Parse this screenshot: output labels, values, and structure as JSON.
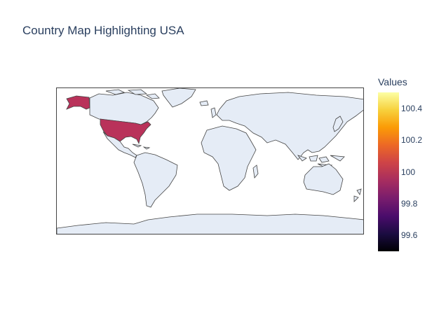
{
  "map": {
    "title": "Country Map Highlighting USA",
    "highlighted_country": "USA",
    "highlight_value": 100,
    "land_color": "#e5ecf6",
    "border_color": "#444444",
    "highlight_color": "#b9325a"
  },
  "colorbar": {
    "title": "Values",
    "colorscale": "inferno",
    "range": [
      99.5,
      100.5
    ],
    "ticks": [
      "100.4",
      "100.2",
      "100",
      "99.8",
      "99.6"
    ]
  }
}
